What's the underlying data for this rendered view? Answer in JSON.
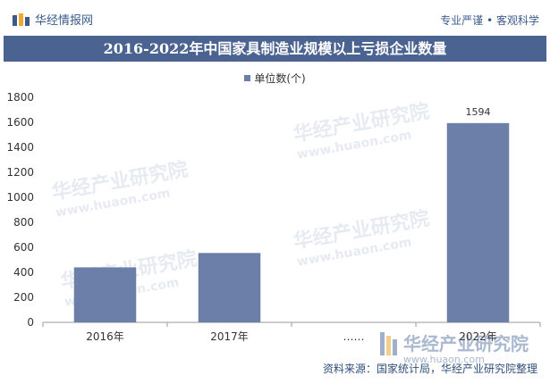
{
  "header": {
    "logo_text": "华经情报网",
    "tagline": "专业严谨 • 客观科学"
  },
  "chart_data": {
    "type": "bar",
    "title": "2016-2022年中国家具制造业规模以上亏损企业数量",
    "categories": [
      "2016年",
      "2017年",
      "……",
      "2022年"
    ],
    "series": [
      {
        "name": "单位数(个)",
        "values": [
          440,
          555,
          null,
          1594
        ]
      }
    ],
    "data_labels": [
      "",
      "",
      "",
      "1594"
    ],
    "ylim": [
      0,
      1800
    ],
    "yticks": [
      0,
      200,
      400,
      600,
      800,
      1000,
      1200,
      1400,
      1600,
      1800
    ],
    "grid": false,
    "legend": "top-center",
    "colors": {
      "bar": "#6b7fa8",
      "title_band": "#4b6391"
    }
  },
  "watermark": {
    "brand": "华经产业研究院",
    "url": "www.huaon.com"
  },
  "footer": {
    "source": "资料来源：国家统计局，华经产业研究院整理"
  }
}
